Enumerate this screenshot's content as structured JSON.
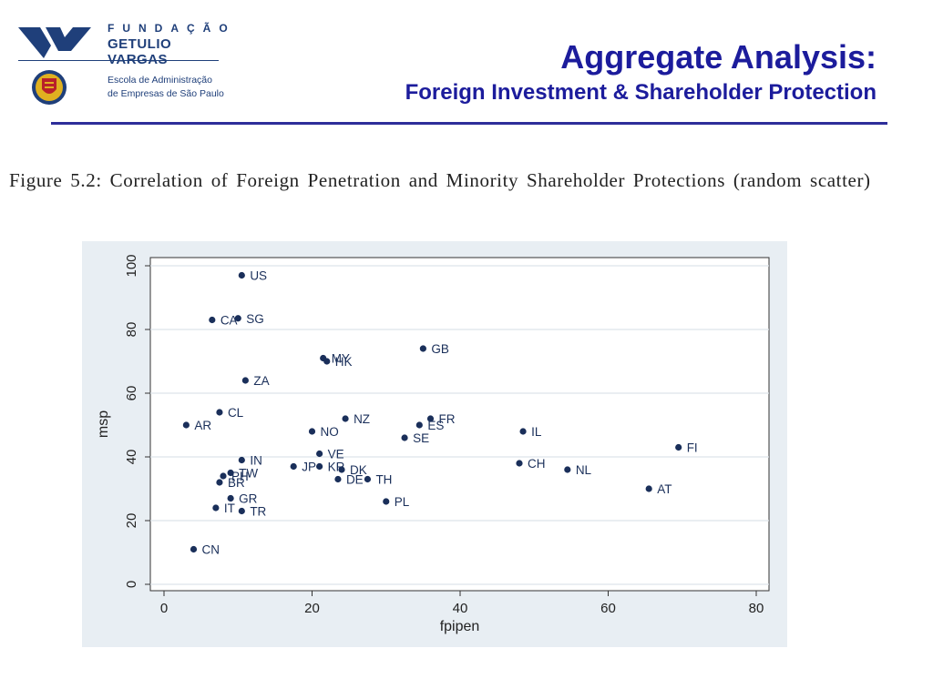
{
  "header": {
    "org_line1": "FUNDAÇÃO",
    "org_line2": "GETULIO VARGAS",
    "school_line1": "Escola de Administração",
    "school_line2": "de Empresas de São Paulo",
    "title": "Aggregate Analysis:",
    "subtitle": "Foreign Investment & Shareholder Protection"
  },
  "figure": {
    "caption": "Figure 5.2: Correlation of Foreign Penetration and Minority Shareholder Protections (random scatter)"
  },
  "colors": {
    "brand_blue": "#1f3f7a",
    "title_blue": "#1c1c9c",
    "chart_background": "#e8eef3",
    "plot_background": "#ffffff",
    "gridline": "#dde4ea",
    "marker": "#1a2f5a"
  },
  "chart_data": {
    "type": "scatter",
    "xlabel": "fpipen",
    "ylabel": "msp",
    "xlim": [
      0,
      80
    ],
    "ylim": [
      0,
      100
    ],
    "xticks": [
      0,
      20,
      40,
      60,
      80
    ],
    "yticks": [
      0,
      20,
      40,
      60,
      80,
      100
    ],
    "grid": true,
    "points": [
      {
        "label": "US",
        "x": 10.5,
        "y": 97
      },
      {
        "label": "CA",
        "x": 6.5,
        "y": 83
      },
      {
        "label": "SG",
        "x": 10,
        "y": 83.5
      },
      {
        "label": "ZA",
        "x": 11,
        "y": 64
      },
      {
        "label": "MY",
        "x": 21.5,
        "y": 71
      },
      {
        "label": "HK",
        "x": 22,
        "y": 70
      },
      {
        "label": "GB",
        "x": 35,
        "y": 74
      },
      {
        "label": "CL",
        "x": 7.5,
        "y": 54
      },
      {
        "label": "AR",
        "x": 3,
        "y": 50
      },
      {
        "label": "NZ",
        "x": 24.5,
        "y": 52
      },
      {
        "label": "FR",
        "x": 36,
        "y": 52
      },
      {
        "label": "NO",
        "x": 20,
        "y": 48
      },
      {
        "label": "ES",
        "x": 34.5,
        "y": 50
      },
      {
        "label": "SE",
        "x": 32.5,
        "y": 46
      },
      {
        "label": "IL",
        "x": 48.5,
        "y": 48
      },
      {
        "label": "FI",
        "x": 69.5,
        "y": 43
      },
      {
        "label": "VE",
        "x": 21,
        "y": 41
      },
      {
        "label": "IN",
        "x": 10.5,
        "y": 39
      },
      {
        "label": "JP",
        "x": 17.5,
        "y": 37
      },
      {
        "label": "KR",
        "x": 21,
        "y": 37
      },
      {
        "label": "DK",
        "x": 24,
        "y": 36
      },
      {
        "label": "DE",
        "x": 23.5,
        "y": 33
      },
      {
        "label": "TH",
        "x": 27.5,
        "y": 33
      },
      {
        "label": "CH",
        "x": 48,
        "y": 38
      },
      {
        "label": "NL",
        "x": 54.5,
        "y": 36
      },
      {
        "label": "AT",
        "x": 65.5,
        "y": 30
      },
      {
        "label": "TW",
        "x": 9,
        "y": 35
      },
      {
        "label": "PH",
        "x": 8,
        "y": 34
      },
      {
        "label": "BR",
        "x": 7.5,
        "y": 32
      },
      {
        "label": "GR",
        "x": 9,
        "y": 27
      },
      {
        "label": "PL",
        "x": 30,
        "y": 26
      },
      {
        "label": "IT",
        "x": 7,
        "y": 24
      },
      {
        "label": "TR",
        "x": 10.5,
        "y": 23
      },
      {
        "label": "CN",
        "x": 4,
        "y": 11
      }
    ]
  }
}
